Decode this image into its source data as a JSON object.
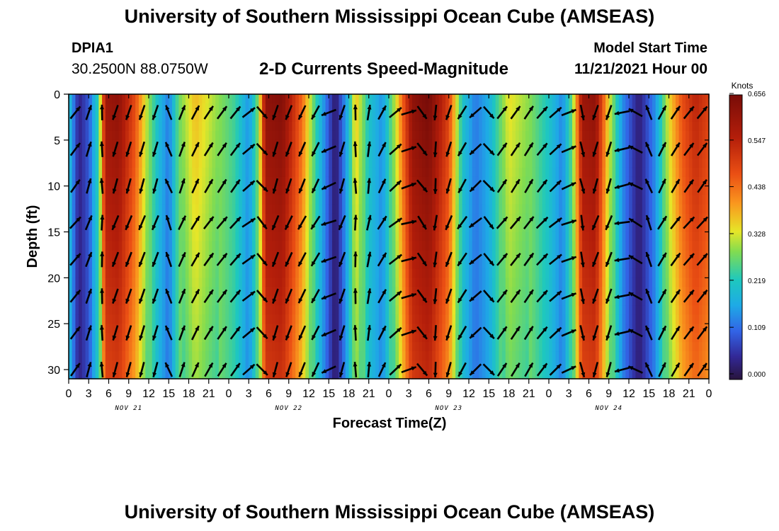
{
  "header": {
    "title": "University of Southern Mississippi Ocean Cube (AMSEAS)",
    "station_id": "DPIA1",
    "station_coords": "30.2500N  88.0750W",
    "model_start_label": "Model Start Time",
    "model_start_value": "11/21/2021 Hour 00",
    "footer_title": "University of Southern Mississippi Ocean Cube (AMSEAS)"
  },
  "chart_data": {
    "type": "heatmap",
    "title": "2-D Currents Speed-Magnitude",
    "xlabel": "Forecast Time(Z)",
    "ylabel": "Depth (ft)",
    "colorbar_label": "Knots",
    "colorbar_ticks": [
      "0.000",
      "0.109",
      "0.219",
      "0.328",
      "0.438",
      "0.547",
      "0.656"
    ],
    "colorbar_range": [
      0,
      0.656
    ],
    "x_range_hours": [
      0,
      96
    ],
    "x_tick_labels": [
      "0",
      "3",
      "6",
      "9",
      "12",
      "15",
      "18",
      "21",
      "0",
      "3",
      "6",
      "9",
      "12",
      "15",
      "18",
      "21",
      "0",
      "3",
      "6",
      "9",
      "12",
      "15",
      "18",
      "21",
      "0",
      "3",
      "6",
      "9",
      "12",
      "15",
      "18",
      "21",
      "0"
    ],
    "date_labels": [
      "NOV 21",
      "NOV 22",
      "NOV 23",
      "NOV 24"
    ],
    "y_range_ft": [
      0,
      31
    ],
    "y_ticks": [
      "0",
      "5",
      "10",
      "15",
      "20",
      "25",
      "30"
    ],
    "speed_by_hour": [
      {
        "hour": 0,
        "speed": 0.22
      },
      {
        "hour": 1.5,
        "speed": 0.04
      },
      {
        "hour": 3,
        "speed": 0.1
      },
      {
        "hour": 4.5,
        "speed": 0.25
      },
      {
        "hour": 5.5,
        "speed": 0.6
      },
      {
        "hour": 7.5,
        "speed": 0.62
      },
      {
        "hour": 10,
        "speed": 0.48
      },
      {
        "hour": 12,
        "speed": 0.3
      },
      {
        "hour": 13.5,
        "speed": 0.2
      },
      {
        "hour": 15,
        "speed": 0.13
      },
      {
        "hour": 16.5,
        "speed": 0.28
      },
      {
        "hour": 19,
        "speed": 0.38
      },
      {
        "hour": 22,
        "speed": 0.31
      },
      {
        "hour": 25,
        "speed": 0.25
      },
      {
        "hour": 27,
        "speed": 0.15
      },
      {
        "hour": 28.5,
        "speed": 0.3
      },
      {
        "hour": 29.5,
        "speed": 0.62
      },
      {
        "hour": 32,
        "speed": 0.64
      },
      {
        "hour": 35,
        "speed": 0.45
      },
      {
        "hour": 37,
        "speed": 0.25
      },
      {
        "hour": 40,
        "speed": 0.02
      },
      {
        "hour": 42,
        "speed": 0.2
      },
      {
        "hour": 43,
        "speed": 0.38
      },
      {
        "hour": 45,
        "speed": 0.22
      },
      {
        "hour": 47,
        "speed": 0.15
      },
      {
        "hour": 49,
        "speed": 0.33
      },
      {
        "hour": 51.5,
        "speed": 0.62
      },
      {
        "hour": 54,
        "speed": 0.66
      },
      {
        "hour": 57,
        "speed": 0.5
      },
      {
        "hour": 59,
        "speed": 0.22
      },
      {
        "hour": 61,
        "speed": 0.13
      },
      {
        "hour": 63,
        "speed": 0.18
      },
      {
        "hour": 66,
        "speed": 0.35
      },
      {
        "hour": 69,
        "speed": 0.3
      },
      {
        "hour": 72,
        "speed": 0.22
      },
      {
        "hour": 74,
        "speed": 0.14
      },
      {
        "hour": 75.5,
        "speed": 0.28
      },
      {
        "hour": 77,
        "speed": 0.6
      },
      {
        "hour": 79,
        "speed": 0.62
      },
      {
        "hour": 81,
        "speed": 0.35
      },
      {
        "hour": 83,
        "speed": 0.15
      },
      {
        "hour": 85.5,
        "speed": 0.03
      },
      {
        "hour": 88,
        "speed": 0.15
      },
      {
        "hour": 90,
        "speed": 0.35
      },
      {
        "hour": 92,
        "speed": 0.48
      },
      {
        "hour": 94,
        "speed": 0.55
      },
      {
        "hour": 96,
        "speed": 0.5
      }
    ],
    "arrow_directions_deg": [
      {
        "hour": 0,
        "deg": 40
      },
      {
        "hour": 4,
        "deg": 0
      },
      {
        "hour": 4.4,
        "deg": 200
      },
      {
        "hour": 6,
        "deg": 200
      },
      {
        "hour": 12,
        "deg": 200
      },
      {
        "hour": 14,
        "deg": 340
      },
      {
        "hour": 15,
        "deg": 20
      },
      {
        "hour": 20,
        "deg": 35
      },
      {
        "hour": 24,
        "deg": 40
      },
      {
        "hour": 27,
        "deg": 60
      },
      {
        "hour": 28.5,
        "deg": 180
      },
      {
        "hour": 30,
        "deg": 200
      },
      {
        "hour": 36,
        "deg": 210
      },
      {
        "hour": 38,
        "deg": 250
      },
      {
        "hour": 39,
        "deg": 300
      },
      {
        "hour": 42,
        "deg": 0
      },
      {
        "hour": 44,
        "deg": 10
      },
      {
        "hour": 47,
        "deg": 40
      },
      {
        "hour": 50,
        "deg": 75
      },
      {
        "hour": 53,
        "deg": 180
      },
      {
        "hour": 56,
        "deg": 200
      },
      {
        "hour": 59,
        "deg": 220
      },
      {
        "hour": 61,
        "deg": 240
      },
      {
        "hour": 63,
        "deg": 40
      },
      {
        "hour": 68,
        "deg": 35
      },
      {
        "hour": 72,
        "deg": 50
      },
      {
        "hour": 74,
        "deg": 70
      },
      {
        "hour": 76,
        "deg": 170
      },
      {
        "hour": 77,
        "deg": 200
      },
      {
        "hour": 80,
        "deg": 200
      },
      {
        "hour": 82,
        "deg": 260
      },
      {
        "hour": 84,
        "deg": 300
      },
      {
        "hour": 86,
        "deg": 340
      },
      {
        "hour": 88,
        "deg": 30
      },
      {
        "hour": 92,
        "deg": 40
      },
      {
        "hour": 96,
        "deg": 40
      }
    ]
  }
}
